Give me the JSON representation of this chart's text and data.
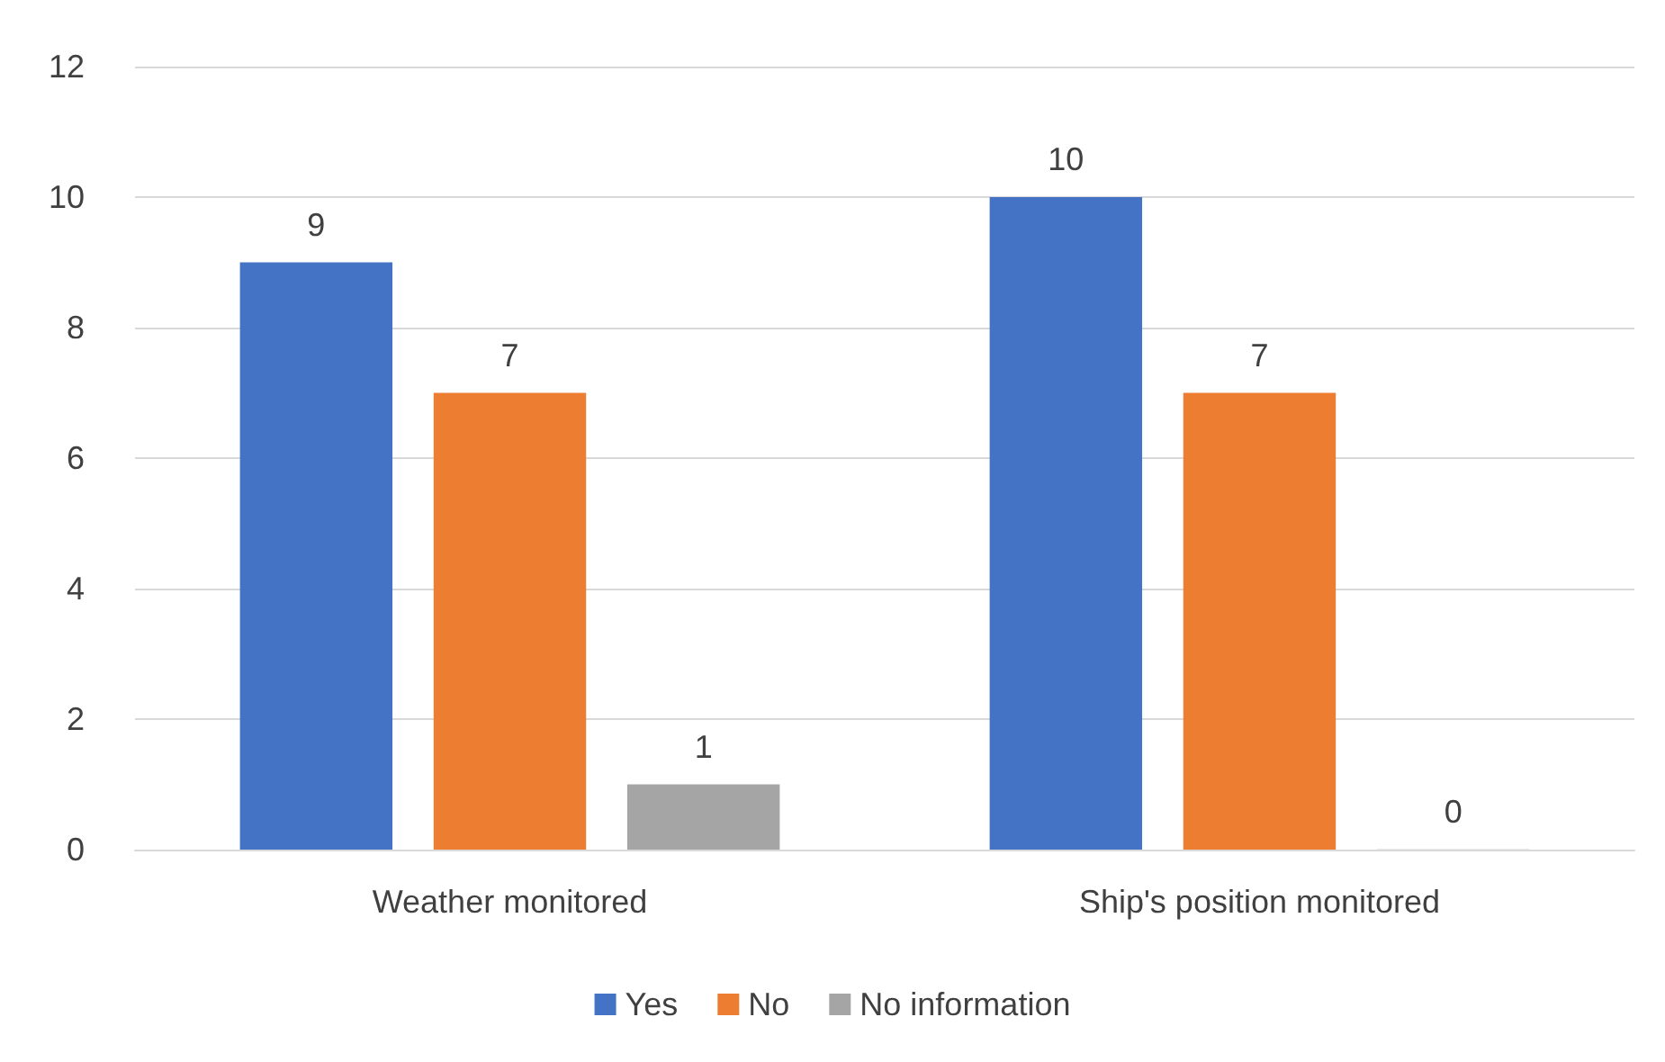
{
  "chart_data": {
    "type": "bar",
    "categories": [
      "Weather monitored",
      "Ship's position monitored"
    ],
    "series": [
      {
        "name": "Yes",
        "color": "#4472c4",
        "values": [
          9,
          10
        ]
      },
      {
        "name": "No",
        "color": "#ed7d31",
        "values": [
          7,
          7
        ]
      },
      {
        "name": "No information",
        "color": "#a5a5a5",
        "values": [
          1,
          0
        ]
      }
    ],
    "ylim": [
      0,
      12
    ],
    "yticks": [
      0,
      2,
      4,
      6,
      8,
      10,
      12
    ],
    "grid": "y",
    "legend": "bottom",
    "data_labels": true
  }
}
